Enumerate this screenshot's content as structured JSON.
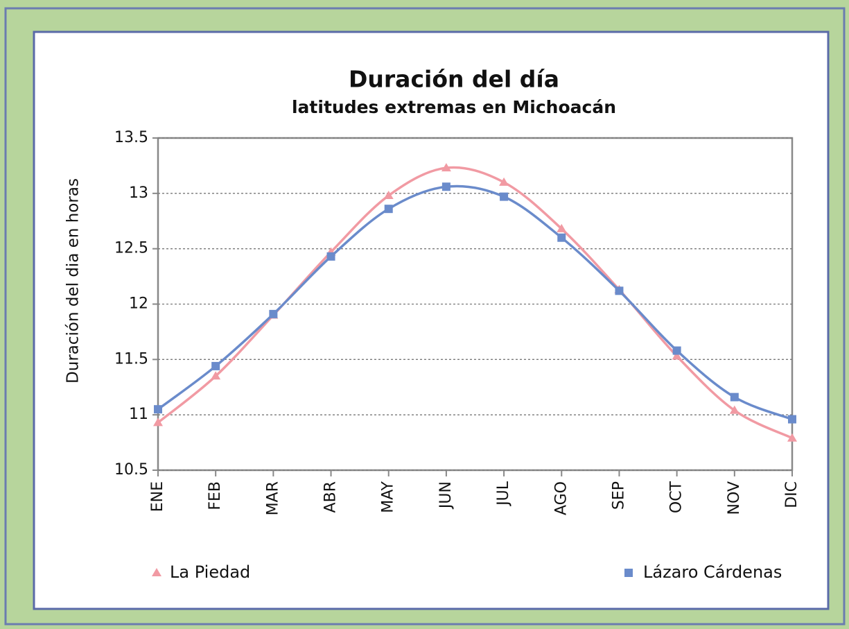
{
  "chart_data": {
    "type": "line",
    "title": "Duración del día",
    "subtitle": "latitudes extremas en Michoacán",
    "y_label": "Duración del dia en horas",
    "categories": [
      "ENE",
      "FEB",
      "MAR",
      "ABR",
      "MAY",
      "JUN",
      "JUL",
      "AGO",
      "SEP",
      "OCT",
      "NOV",
      "DIC"
    ],
    "series": [
      {
        "name": "La Piedad",
        "color": "#f19aa3",
        "marker": "triangle",
        "values": [
          10.93,
          11.35,
          11.9,
          12.47,
          12.98,
          13.23,
          13.1,
          12.68,
          12.13,
          11.53,
          11.04,
          10.79
        ]
      },
      {
        "name": "Lázaro Cárdenas",
        "color": "#6a8bcb",
        "marker": "square",
        "values": [
          11.05,
          11.44,
          11.91,
          12.43,
          12.86,
          13.06,
          12.97,
          12.6,
          12.12,
          11.58,
          11.16,
          10.96
        ]
      }
    ],
    "ylim": [
      10.5,
      13.5
    ],
    "yticks": [
      10.5,
      11,
      11.5,
      12,
      12.5,
      13,
      13.5
    ],
    "grid": true,
    "smooth": true,
    "legend": "bottom"
  }
}
